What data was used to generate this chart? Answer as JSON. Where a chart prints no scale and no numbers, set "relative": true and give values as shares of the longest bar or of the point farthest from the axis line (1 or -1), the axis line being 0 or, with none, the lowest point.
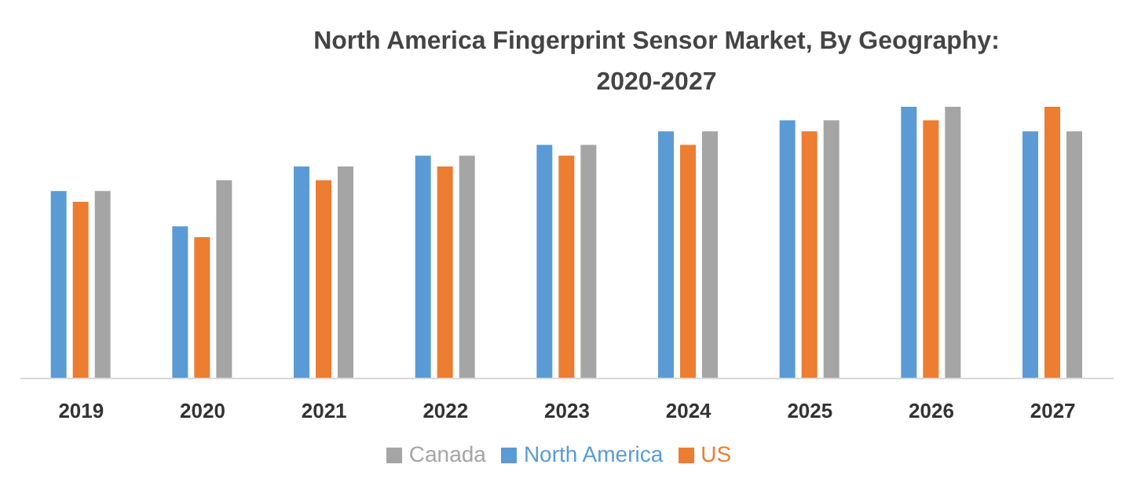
{
  "chart_data": {
    "type": "bar",
    "title": "North America Fingerprint Sensor Market, By Geography: 2020-2027",
    "relative": true,
    "categories": [
      "2019",
      "2020",
      "2021",
      "2022",
      "2023",
      "2024",
      "2025",
      "2026",
      "2027"
    ],
    "series": [
      {
        "name": "North America",
        "color": "#5b9bd5",
        "values": [
          0.69,
          0.56,
          0.78,
          0.82,
          0.86,
          0.91,
          0.95,
          1,
          0.91
        ]
      },
      {
        "name": "US",
        "color": "#ed7d31",
        "values": [
          0.65,
          0.52,
          0.73,
          0.78,
          0.82,
          0.86,
          0.91,
          0.95,
          1
        ]
      },
      {
        "name": "Canada",
        "color": "#a5a5a5",
        "values": [
          0.69,
          0.73,
          0.78,
          0.82,
          0.86,
          0.91,
          0.95,
          1,
          0.91
        ]
      }
    ],
    "legend": "bottom",
    "grid": false
  }
}
